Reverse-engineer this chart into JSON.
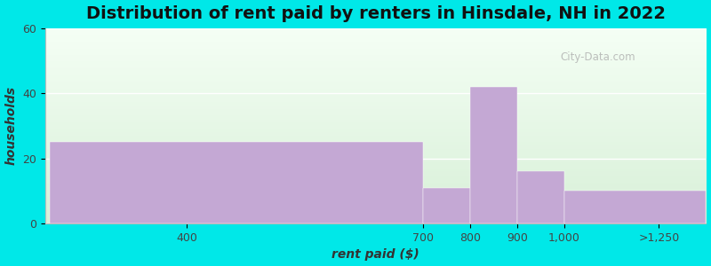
{
  "title": "Distribution of rent paid by renters in Hinsdale, NH in 2022",
  "xlabel": "rent paid ($)",
  "ylabel": "households",
  "bar_color": "#c4a8d4",
  "xtick_labels": [
    "400",
    "700",
    "800",
    "900",
    "1,000",
    ">1,250"
  ],
  "ylim": [
    0,
    60
  ],
  "ytick_positions": [
    0,
    20,
    40,
    60
  ],
  "background_color": "#00e8e8",
  "title_fontsize": 14,
  "axis_label_fontsize": 10,
  "tick_fontsize": 9,
  "watermark_text": "City-Data.com",
  "xlim_left": 0,
  "xlim_right": 7,
  "bar_centers": [
    1.5,
    4.5,
    5.0,
    5.5,
    6.0,
    6.5
  ],
  "bar_widths_u": [
    3.0,
    1.0,
    1.0,
    1.0,
    1.0,
    1.0
  ],
  "bar_heights": [
    25,
    0,
    11,
    42,
    16,
    10
  ],
  "tick_x_positions": [
    1.5,
    4.0,
    4.5,
    5.0,
    5.5,
    6.5
  ],
  "gradient_top_color": "#e0f0e0",
  "gradient_bottom_color": "#f5fff5"
}
